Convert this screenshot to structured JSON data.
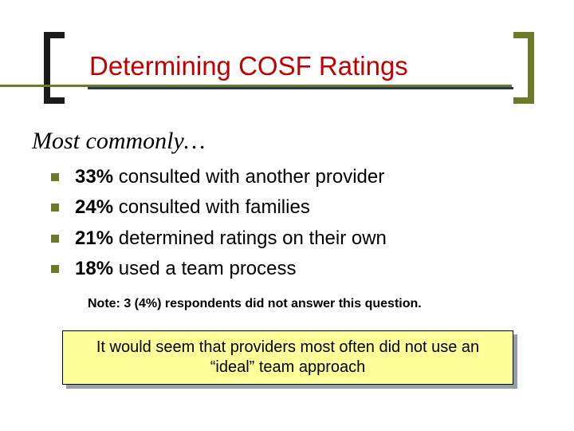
{
  "colors": {
    "title_color": "#c00000",
    "bracket_left": "#1a1a1a",
    "bracket_right": "#6d7a2a",
    "underline_olive": "#6d7a2a",
    "underline_dark": "#2a3a4a",
    "bullet_square": "#6d7a2a",
    "callout_bg": "#ffff99",
    "callout_shadow": "#95a0aa",
    "text": "#000000",
    "background": "#ffffff"
  },
  "fonts": {
    "title_size_pt": 33,
    "subhead_size_pt": 30,
    "bullet_size_pt": 24,
    "note_size_pt": 16,
    "callout_size_pt": 20
  },
  "title": "Determining COSF Ratings",
  "subhead": "Most commonly…",
  "bullets": [
    {
      "pct": "33%",
      "rest": " consulted with another provider"
    },
    {
      "pct": "24%",
      "rest": " consulted with families"
    },
    {
      "pct": "21%",
      "rest": " determined ratings on their own"
    },
    {
      "pct": "18%",
      "rest": " used a team process"
    }
  ],
  "note": "Note: 3 (4%) respondents did not answer this question.",
  "callout": "It would seem that providers most often did not use an “ideal” team approach"
}
